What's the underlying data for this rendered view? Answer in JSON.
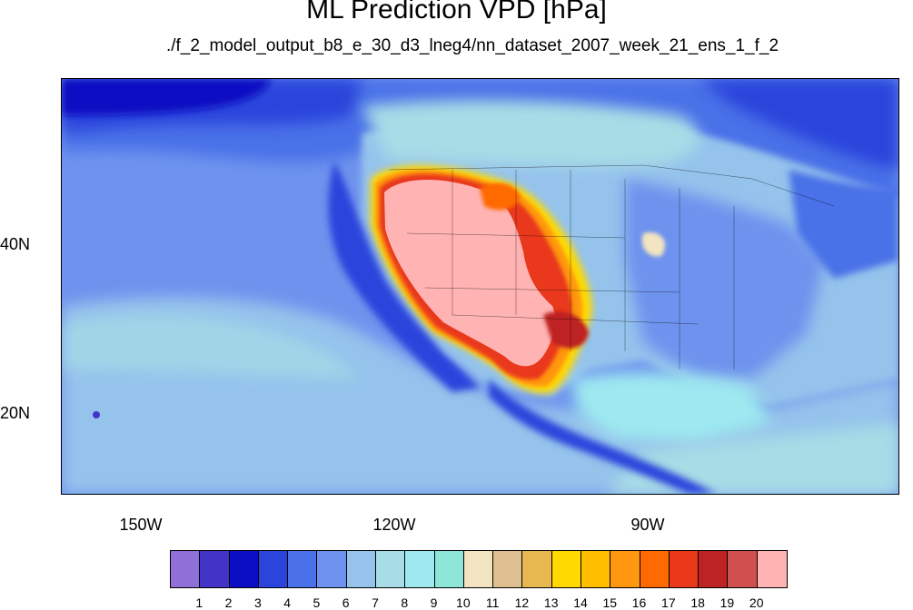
{
  "title": "ML Prediction VPD [hPa]",
  "subtitle": "./f_2_model_output_b8_e_30_d3_lneg4/nn_dataset_2007_week_21_ens_1_f_2",
  "lat_labels": [
    "40N",
    "20N"
  ],
  "lon_labels": [
    "150W",
    "120W",
    "90W"
  ],
  "colorbar": {
    "colors": [
      "#8f6fd8",
      "#4334c8",
      "#0a0fc3",
      "#2a45dc",
      "#4a71e8",
      "#6e93ee",
      "#95c3ec",
      "#a8dce6",
      "#9ee9f0",
      "#8ee6d8",
      "#f2e4c0",
      "#e0c090",
      "#e8b850",
      "#ffd900",
      "#ffbe00",
      "#ff9710",
      "#ff6a00",
      "#e9381a",
      "#be2323",
      "#d05050",
      "#ffb3b3"
    ],
    "labels": [
      "1",
      "2",
      "3",
      "4",
      "5",
      "6",
      "7",
      "8",
      "9",
      "10",
      "11",
      "12",
      "13",
      "14",
      "15",
      "16",
      "17",
      "18",
      "19",
      "20"
    ]
  },
  "chart_data": {
    "type": "heatmap",
    "title": "ML Prediction VPD [hPa]",
    "subtitle": "./f_2_model_output_b8_e_30_d3_lneg4/nn_dataset_2007_week_21_ens_1_f_2",
    "lat_ticks": [
      "40N",
      "20N"
    ],
    "lon_ticks": [
      "150W",
      "120W",
      "90W"
    ],
    "colorbar_levels": [
      1,
      2,
      3,
      4,
      5,
      6,
      7,
      8,
      9,
      10,
      11,
      12,
      13,
      14,
      15,
      16,
      17,
      18,
      19,
      20
    ]
  }
}
